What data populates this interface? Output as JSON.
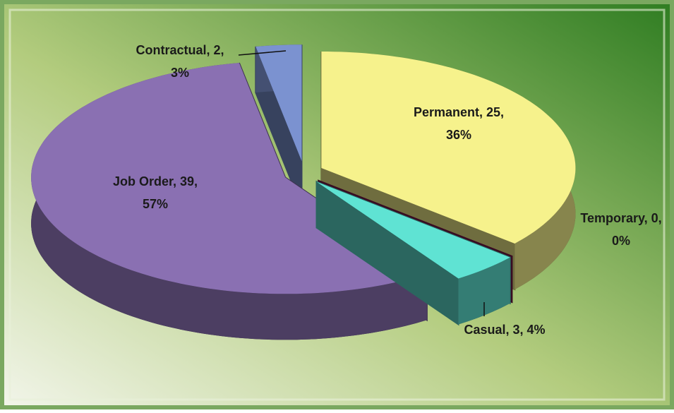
{
  "chart_data": {
    "type": "pie3d",
    "categories": [
      "Permanent",
      "Temporary",
      "Casual",
      "Job Order",
      "Contractual"
    ],
    "values": [
      25,
      0,
      3,
      39,
      2
    ],
    "value_labels": [
      [
        "Permanent, 25,",
        "36%"
      ],
      [
        "Temporary, 0,",
        "0%"
      ],
      [
        "Casual, 3, 4%"
      ],
      [
        "Job Order, 39,",
        "57%"
      ],
      [
        "Contractual, 2,",
        "3%"
      ]
    ],
    "colors": [
      "#f6f28c",
      "#7c1a4c",
      "#5fe3d3",
      "#8a70b2",
      "#7b92d0"
    ]
  }
}
